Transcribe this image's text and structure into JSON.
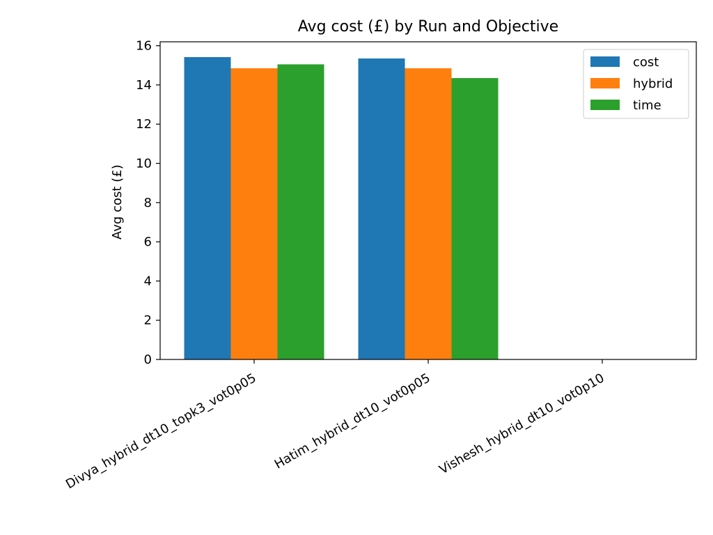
{
  "chart_data": {
    "type": "bar",
    "title": "Avg cost (£) by Run and Objective",
    "xlabel": "",
    "ylabel": "Avg cost (£)",
    "ylim": [
      0,
      16.2
    ],
    "yticks": [
      0,
      2,
      4,
      6,
      8,
      10,
      12,
      14,
      16
    ],
    "categories": [
      "Divya_hybrid_dt10_topk3_vot0p05",
      "Hatim_hybrid_dt10_vot0p05",
      "Vishesh_hybrid_dt10_vot0p10"
    ],
    "series": [
      {
        "name": "cost",
        "color": "#1f77b4",
        "values": [
          15.42,
          15.35,
          null
        ]
      },
      {
        "name": "hybrid",
        "color": "#ff7f0e",
        "values": [
          14.85,
          14.85,
          null
        ]
      },
      {
        "name": "time",
        "color": "#2ca02c",
        "values": [
          15.05,
          14.35,
          null
        ]
      }
    ],
    "grid": false,
    "legend_position": "top-right"
  }
}
